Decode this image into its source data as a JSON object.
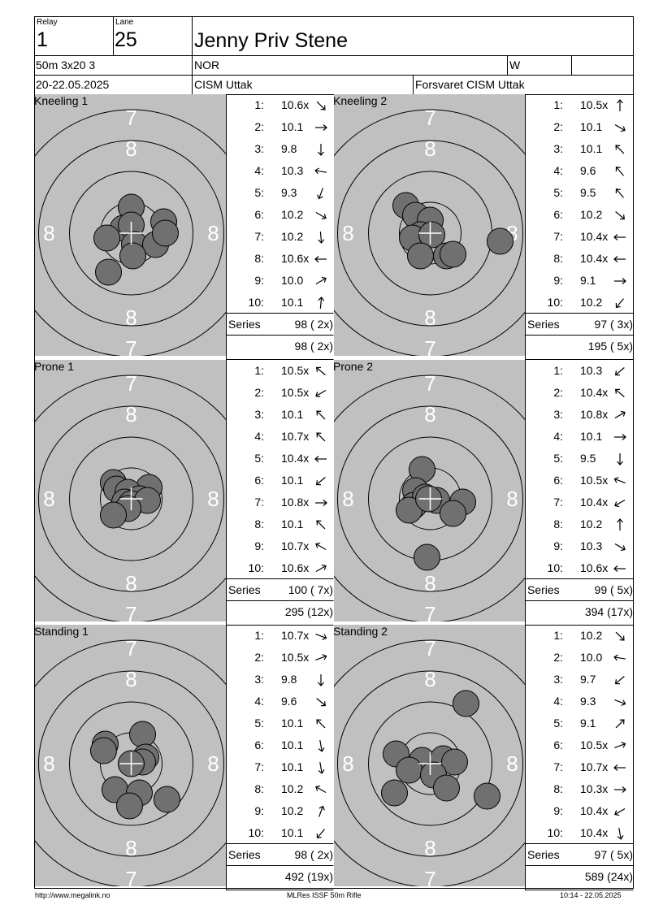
{
  "header": {
    "relay_label": "Relay",
    "relay_value": "1",
    "lane_label": "Lane",
    "lane_value": "25",
    "name": "Jenny Priv Stene",
    "event": "50m 3x20 3",
    "nation": "NOR",
    "gender": "W",
    "date": "20-22.05.2025",
    "match": "CISM Uttak",
    "club": "Forsvaret CISM Uttak"
  },
  "series": [
    {
      "title": "Kneeling 1",
      "shots": [
        {
          "n": "1:",
          "score": "10.6x",
          "dir": 135
        },
        {
          "n": "2:",
          "score": "10.1",
          "dir": 90
        },
        {
          "n": "3:",
          "score": "9.8",
          "dir": 180
        },
        {
          "n": "4:",
          "score": "10.3",
          "dir": -80
        },
        {
          "n": "5:",
          "score": "9.3",
          "dir": -160
        },
        {
          "n": "6:",
          "score": "10.2",
          "dir": 120
        },
        {
          "n": "7:",
          "score": "10.2",
          "dir": 175
        },
        {
          "n": "8:",
          "score": "10.6x",
          "dir": -90
        },
        {
          "n": "9:",
          "score": "10.0",
          "dir": 60
        },
        {
          "n": "10:",
          "score": "10.1",
          "dir": 5
        }
      ],
      "series_label": "Series",
      "series_total": "98 ( 2x)",
      "cumulative": "98 ( 2x)",
      "impacts": [
        [
          0,
          -32
        ],
        [
          -10,
          -6
        ],
        [
          0,
          -10
        ],
        [
          40,
          -14
        ],
        [
          -30,
          6
        ],
        [
          4,
          14
        ],
        [
          30,
          14
        ],
        [
          42,
          0
        ],
        [
          2,
          28
        ],
        [
          -28,
          48
        ]
      ]
    },
    {
      "title": "Kneeling 2",
      "shots": [
        {
          "n": "1:",
          "score": "10.5x",
          "dir": 0
        },
        {
          "n": "2:",
          "score": "10.1",
          "dir": 120
        },
        {
          "n": "3:",
          "score": "10.1",
          "dir": -45
        },
        {
          "n": "4:",
          "score": "9.6",
          "dir": -40
        },
        {
          "n": "5:",
          "score": "9.5",
          "dir": -40
        },
        {
          "n": "6:",
          "score": "10.2",
          "dir": 130
        },
        {
          "n": "7:",
          "score": "10.4x",
          "dir": -90
        },
        {
          "n": "8:",
          "score": "10.4x",
          "dir": -90
        },
        {
          "n": "9:",
          "score": "9.1",
          "dir": 90
        },
        {
          "n": "10:",
          "score": "10.2",
          "dir": -140
        }
      ],
      "series_label": "Series",
      "series_total": "97 ( 3x)",
      "cumulative": "195 ( 5x)",
      "impacts": [
        [
          -30,
          -34
        ],
        [
          -18,
          -22
        ],
        [
          0,
          -16
        ],
        [
          -12,
          2
        ],
        [
          -22,
          6
        ],
        [
          2,
          2
        ],
        [
          86,
          10
        ],
        [
          -12,
          28
        ],
        [
          20,
          28
        ],
        [
          28,
          26
        ]
      ]
    },
    {
      "title": "Prone 1",
      "shots": [
        {
          "n": "1:",
          "score": "10.5x",
          "dir": -50
        },
        {
          "n": "2:",
          "score": "10.5x",
          "dir": -120
        },
        {
          "n": "3:",
          "score": "10.1",
          "dir": -45
        },
        {
          "n": "4:",
          "score": "10.7x",
          "dir": -45
        },
        {
          "n": "5:",
          "score": "10.4x",
          "dir": -90
        },
        {
          "n": "6:",
          "score": "10.1",
          "dir": -130
        },
        {
          "n": "7:",
          "score": "10.8x",
          "dir": 90
        },
        {
          "n": "8:",
          "score": "10.1",
          "dir": -45
        },
        {
          "n": "9:",
          "score": "10.7x",
          "dir": -60
        },
        {
          "n": "10:",
          "score": "10.6x",
          "dir": 60
        }
      ],
      "series_label": "Series",
      "series_total": "100 ( 7x)",
      "cumulative": "295 (12x)",
      "impacts": [
        [
          -22,
          -20
        ],
        [
          -18,
          -12
        ],
        [
          22,
          -14
        ],
        [
          -4,
          -8
        ],
        [
          10,
          0
        ],
        [
          -8,
          4
        ],
        [
          0,
          6
        ],
        [
          20,
          2
        ],
        [
          -4,
          12
        ],
        [
          -22,
          20
        ]
      ]
    },
    {
      "title": "Prone 2",
      "shots": [
        {
          "n": "1:",
          "score": "10.3",
          "dir": -130
        },
        {
          "n": "2:",
          "score": "10.4x",
          "dir": -50
        },
        {
          "n": "3:",
          "score": "10.8x",
          "dir": 60
        },
        {
          "n": "4:",
          "score": "10.1",
          "dir": 90
        },
        {
          "n": "5:",
          "score": "9.5",
          "dir": 180
        },
        {
          "n": "6:",
          "score": "10.5x",
          "dir": -70
        },
        {
          "n": "7:",
          "score": "10.4x",
          "dir": -120
        },
        {
          "n": "8:",
          "score": "10.2",
          "dir": 0
        },
        {
          "n": "9:",
          "score": "10.3",
          "dir": 120
        },
        {
          "n": "10:",
          "score": "10.6x",
          "dir": -90
        }
      ],
      "series_label": "Series",
      "series_total": "99 ( 5x)",
      "cumulative": "394 (17x)",
      "impacts": [
        [
          -10,
          -36
        ],
        [
          -18,
          -10
        ],
        [
          -20,
          8
        ],
        [
          -6,
          -2
        ],
        [
          8,
          2
        ],
        [
          -26,
          14
        ],
        [
          40,
          4
        ],
        [
          28,
          18
        ],
        [
          -2,
          0
        ],
        [
          -4,
          72
        ]
      ]
    },
    {
      "title": "Standing 1",
      "shots": [
        {
          "n": "1:",
          "score": "10.7x",
          "dir": 110
        },
        {
          "n": "2:",
          "score": "10.5x",
          "dir": 70
        },
        {
          "n": "3:",
          "score": "9.8",
          "dir": 180
        },
        {
          "n": "4:",
          "score": "9.6",
          "dir": 130
        },
        {
          "n": "5:",
          "score": "10.1",
          "dir": -45
        },
        {
          "n": "6:",
          "score": "10.1",
          "dir": 170
        },
        {
          "n": "7:",
          "score": "10.1",
          "dir": 170
        },
        {
          "n": "8:",
          "score": "10.2",
          "dir": -60
        },
        {
          "n": "9:",
          "score": "10.2",
          "dir": 20
        },
        {
          "n": "10:",
          "score": "10.1",
          "dir": -140
        }
      ],
      "series_label": "Series",
      "series_total": "98 ( 2x)",
      "cumulative": "492 (19x)",
      "impacts": [
        [
          14,
          -36
        ],
        [
          -32,
          -24
        ],
        [
          -34,
          -16
        ],
        [
          18,
          -8
        ],
        [
          14,
          -2
        ],
        [
          -20,
          32
        ],
        [
          10,
          36
        ],
        [
          -2,
          52
        ],
        [
          44,
          44
        ],
        [
          0,
          0
        ]
      ]
    },
    {
      "title": "Standing 2",
      "shots": [
        {
          "n": "1:",
          "score": "10.2",
          "dir": 135
        },
        {
          "n": "2:",
          "score": "10.0",
          "dir": -80
        },
        {
          "n": "3:",
          "score": "9.7",
          "dir": -130
        },
        {
          "n": "4:",
          "score": "9.3",
          "dir": 110
        },
        {
          "n": "5:",
          "score": "9.1",
          "dir": 45
        },
        {
          "n": "6:",
          "score": "10.5x",
          "dir": 70
        },
        {
          "n": "7:",
          "score": "10.7x",
          "dir": -90
        },
        {
          "n": "8:",
          "score": "10.3x",
          "dir": 90
        },
        {
          "n": "9:",
          "score": "10.4x",
          "dir": -120
        },
        {
          "n": "10:",
          "score": "10.4x",
          "dir": 170
        }
      ],
      "series_label": "Series",
      "series_total": "97 ( 5x)",
      "cumulative": "589 (24x)",
      "impacts": [
        [
          44,
          -74
        ],
        [
          -42,
          -12
        ],
        [
          -10,
          -4
        ],
        [
          16,
          -6
        ],
        [
          30,
          -2
        ],
        [
          -26,
          8
        ],
        [
          4,
          14
        ],
        [
          20,
          30
        ],
        [
          -44,
          36
        ],
        [
          70,
          40
        ]
      ]
    }
  ],
  "footer": {
    "left": "http://www.megalink.no",
    "center": "MLRes ISSF 50m Rifle",
    "right": "10:14 - 22.05.2025"
  },
  "colors": {
    "target_bg": "#c0c0c0",
    "ring_line": "#000000",
    "impact_fill": "#707070",
    "ring_label": "#ffffff"
  }
}
